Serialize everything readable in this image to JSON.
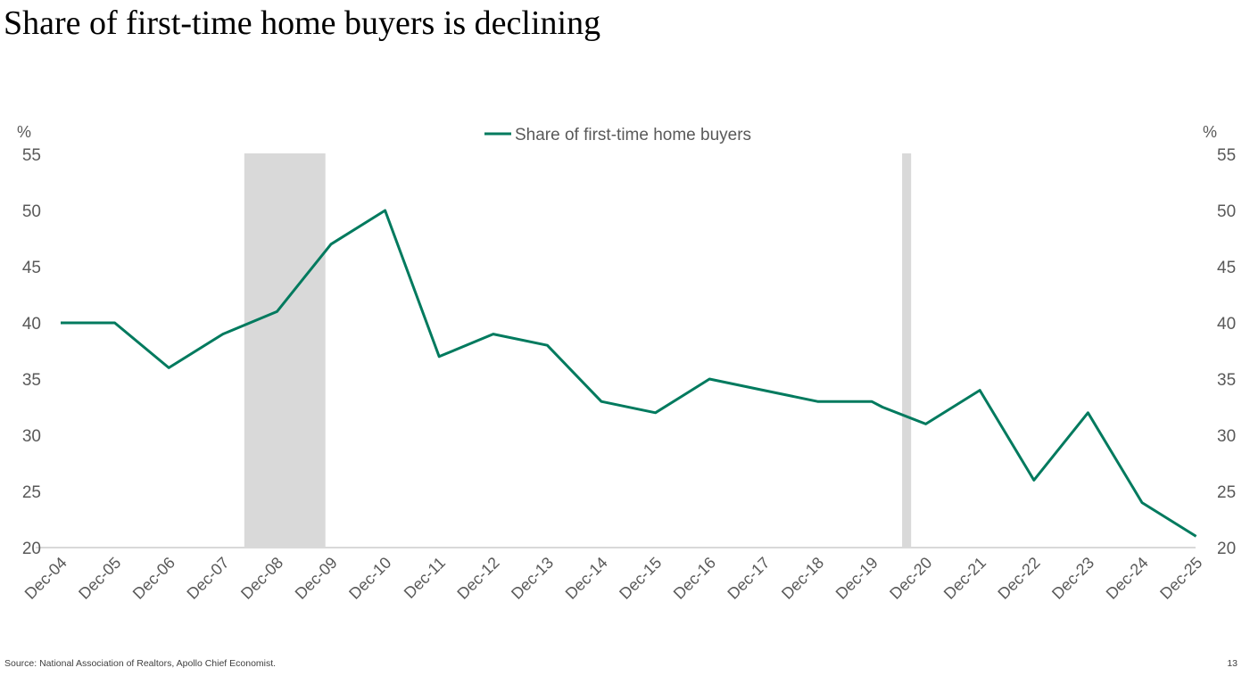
{
  "slide": {
    "title": "Share of  first-time home buyers is declining",
    "source": "Source: National Association of Realtors, Apollo Chief Economist.",
    "page_number": "13"
  },
  "colors": {
    "line": "#007A5E",
    "recession_shade": "#D9D9D9",
    "axis_text": "#595959",
    "baseline": "#D9D9D9"
  },
  "chart_data": {
    "type": "line",
    "title": "",
    "x": [
      "Dec-04",
      "Dec-05",
      "Dec-06",
      "Dec-07",
      "Dec-08",
      "Dec-09",
      "Dec-10",
      "Dec-11",
      "Dec-12",
      "Dec-13",
      "Dec-14",
      "Dec-15",
      "Dec-16",
      "Dec-17",
      "Dec-18",
      "Dec-19",
      "Dec-20",
      "Dec-21",
      "Dec-22",
      "Dec-23",
      "Dec-24",
      "Dec-25"
    ],
    "series": [
      {
        "name": "Share of first-time home buyers",
        "points": [
          {
            "x": "Dec-04",
            "y": 40
          },
          {
            "x": "Dec-05",
            "y": 40
          },
          {
            "x": "Dec-06",
            "y": 36
          },
          {
            "x": "Dec-07",
            "y": 39
          },
          {
            "x": "Dec-08",
            "y": 41
          },
          {
            "x": "Dec-08.5",
            "y": 44
          },
          {
            "x": "Dec-09",
            "y": 47
          },
          {
            "x": "Dec-10",
            "y": 50
          },
          {
            "x": "Dec-11",
            "y": 37
          },
          {
            "x": "Dec-12",
            "y": 39
          },
          {
            "x": "Dec-13",
            "y": 38
          },
          {
            "x": "Dec-14",
            "y": 33
          },
          {
            "x": "Dec-15",
            "y": 32
          },
          {
            "x": "Dec-16",
            "y": 35
          },
          {
            "x": "Dec-17",
            "y": 34
          },
          {
            "x": "Dec-18",
            "y": 33
          },
          {
            "x": "Dec-19",
            "y": 33
          },
          {
            "x": "Dec-19.2",
            "y": 32.5
          },
          {
            "x": "Dec-20",
            "y": 31
          },
          {
            "x": "Dec-21",
            "y": 34
          },
          {
            "x": "Dec-22",
            "y": 26
          },
          {
            "x": "Dec-23",
            "y": 32
          },
          {
            "x": "Dec-24",
            "y": 24
          },
          {
            "x": "Dec-25",
            "y": 21
          }
        ]
      }
    ],
    "recessions": [
      {
        "start": "Dec-07",
        "end": "Jun-09"
      },
      {
        "start": "Feb-20",
        "end": "Apr-20"
      }
    ],
    "ylabel_left": "%",
    "ylabel_right": "%",
    "ylim": [
      20,
      55
    ],
    "yticks": [
      20,
      25,
      30,
      35,
      40,
      45,
      50,
      55
    ],
    "legend_position": "top-center",
    "grid": false
  }
}
